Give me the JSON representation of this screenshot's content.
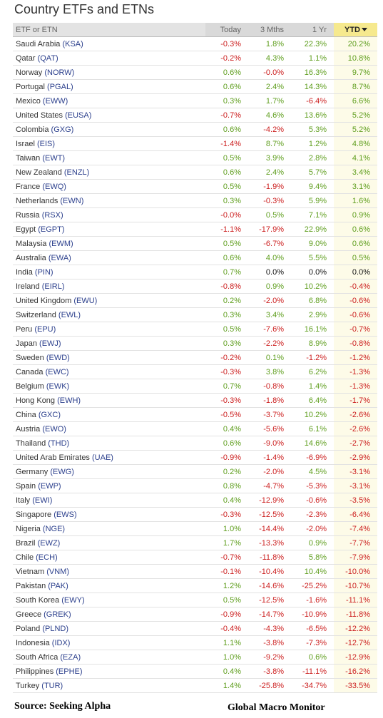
{
  "title": "Country ETFs and ETNs",
  "columns": [
    "ETF or ETN",
    "Today",
    "3 Mths",
    "1 Yr",
    "YTD"
  ],
  "sorted_column": "YTD",
  "colors": {
    "positive": "#5f9e1e",
    "negative": "#cc1f1f",
    "ticker": "#2b3f8c",
    "header_sorted": "#f6e98e"
  },
  "rows": [
    {
      "country": "Saudi Arabia",
      "ticker": "(KSA)",
      "today": "-0.3%",
      "m3": "1.8%",
      "yr1": "22.3%",
      "ytd": "20.2%"
    },
    {
      "country": "Qatar",
      "ticker": "(QAT)",
      "today": "-0.2%",
      "m3": "4.3%",
      "yr1": "1.1%",
      "ytd": "10.8%"
    },
    {
      "country": "Norway",
      "ticker": "(NORW)",
      "today": "0.6%",
      "m3": "-0.0%",
      "yr1": "16.3%",
      "ytd": "9.7%"
    },
    {
      "country": "Portugal",
      "ticker": "(PGAL)",
      "today": "0.6%",
      "m3": "2.4%",
      "yr1": "14.3%",
      "ytd": "8.7%"
    },
    {
      "country": "Mexico",
      "ticker": "(EWW)",
      "today": "0.3%",
      "m3": "1.7%",
      "yr1": "-6.4%",
      "ytd": "6.6%"
    },
    {
      "country": "United States",
      "ticker": "(EUSA)",
      "today": "-0.7%",
      "m3": "4.6%",
      "yr1": "13.6%",
      "ytd": "5.2%"
    },
    {
      "country": "Colombia",
      "ticker": "(GXG)",
      "today": "0.6%",
      "m3": "-4.2%",
      "yr1": "5.3%",
      "ytd": "5.2%"
    },
    {
      "country": "Israel",
      "ticker": "(EIS)",
      "today": "-1.4%",
      "m3": "8.7%",
      "yr1": "1.2%",
      "ytd": "4.8%"
    },
    {
      "country": "Taiwan",
      "ticker": "(EWT)",
      "today": "0.5%",
      "m3": "3.9%",
      "yr1": "2.8%",
      "ytd": "4.1%"
    },
    {
      "country": "New Zealand",
      "ticker": "(ENZL)",
      "today": "0.6%",
      "m3": "2.4%",
      "yr1": "5.7%",
      "ytd": "3.4%"
    },
    {
      "country": "France",
      "ticker": "(EWQ)",
      "today": "0.5%",
      "m3": "-1.9%",
      "yr1": "9.4%",
      "ytd": "3.1%"
    },
    {
      "country": "Netherlands",
      "ticker": "(EWN)",
      "today": "0.3%",
      "m3": "-0.3%",
      "yr1": "5.9%",
      "ytd": "1.6%"
    },
    {
      "country": "Russia",
      "ticker": "(RSX)",
      "today": "-0.0%",
      "m3": "0.5%",
      "yr1": "7.1%",
      "ytd": "0.9%"
    },
    {
      "country": "Egypt",
      "ticker": "(EGPT)",
      "today": "-1.1%",
      "m3": "-17.9%",
      "yr1": "22.9%",
      "ytd": "0.6%"
    },
    {
      "country": "Malaysia",
      "ticker": "(EWM)",
      "today": "0.5%",
      "m3": "-6.7%",
      "yr1": "9.0%",
      "ytd": "0.6%"
    },
    {
      "country": "Australia",
      "ticker": "(EWA)",
      "today": "0.6%",
      "m3": "4.0%",
      "yr1": "5.5%",
      "ytd": "0.5%"
    },
    {
      "country": "India",
      "ticker": "(PIN)",
      "today": "0.7%",
      "m3": "0.0%",
      "yr1": "0.0%",
      "ytd": "0.0%"
    },
    {
      "country": "Ireland",
      "ticker": "(EIRL)",
      "today": "-0.8%",
      "m3": "0.9%",
      "yr1": "10.2%",
      "ytd": "-0.4%"
    },
    {
      "country": "United Kingdom",
      "ticker": "(EWU)",
      "today": "0.2%",
      "m3": "-2.0%",
      "yr1": "6.8%",
      "ytd": "-0.6%"
    },
    {
      "country": "Switzerland",
      "ticker": "(EWL)",
      "today": "0.3%",
      "m3": "3.4%",
      "yr1": "2.9%",
      "ytd": "-0.6%"
    },
    {
      "country": "Peru",
      "ticker": "(EPU)",
      "today": "0.5%",
      "m3": "-7.6%",
      "yr1": "16.1%",
      "ytd": "-0.7%"
    },
    {
      "country": "Japan",
      "ticker": "(EWJ)",
      "today": "0.3%",
      "m3": "-2.2%",
      "yr1": "8.9%",
      "ytd": "-0.8%"
    },
    {
      "country": "Sweden",
      "ticker": "(EWD)",
      "today": "-0.2%",
      "m3": "0.1%",
      "yr1": "-1.2%",
      "ytd": "-1.2%"
    },
    {
      "country": "Canada",
      "ticker": "(EWC)",
      "today": "-0.3%",
      "m3": "3.8%",
      "yr1": "6.2%",
      "ytd": "-1.3%"
    },
    {
      "country": "Belgium",
      "ticker": "(EWK)",
      "today": "0.7%",
      "m3": "-0.8%",
      "yr1": "1.4%",
      "ytd": "-1.3%"
    },
    {
      "country": "Hong Kong",
      "ticker": "(EWH)",
      "today": "-0.3%",
      "m3": "-1.8%",
      "yr1": "6.4%",
      "ytd": "-1.7%"
    },
    {
      "country": "China",
      "ticker": "(GXC)",
      "today": "-0.5%",
      "m3": "-3.7%",
      "yr1": "10.2%",
      "ytd": "-2.6%"
    },
    {
      "country": "Austria",
      "ticker": "(EWO)",
      "today": "0.4%",
      "m3": "-5.6%",
      "yr1": "6.1%",
      "ytd": "-2.6%"
    },
    {
      "country": "Thailand",
      "ticker": "(THD)",
      "today": "0.6%",
      "m3": "-9.0%",
      "yr1": "14.6%",
      "ytd": "-2.7%"
    },
    {
      "country": "United Arab Emirates",
      "ticker": "(UAE)",
      "today": "-0.9%",
      "m3": "-1.4%",
      "yr1": "-6.9%",
      "ytd": "-2.9%"
    },
    {
      "country": "Germany",
      "ticker": "(EWG)",
      "today": "0.2%",
      "m3": "-2.0%",
      "yr1": "4.5%",
      "ytd": "-3.1%"
    },
    {
      "country": "Spain",
      "ticker": "(EWP)",
      "today": "0.8%",
      "m3": "-4.7%",
      "yr1": "-5.3%",
      "ytd": "-3.1%"
    },
    {
      "country": "Italy",
      "ticker": "(EWI)",
      "today": "0.4%",
      "m3": "-12.9%",
      "yr1": "-0.6%",
      "ytd": "-3.5%"
    },
    {
      "country": "Singapore",
      "ticker": "(EWS)",
      "today": "-0.3%",
      "m3": "-12.5%",
      "yr1": "-2.3%",
      "ytd": "-6.4%"
    },
    {
      "country": "Nigeria",
      "ticker": "(NGE)",
      "today": "1.0%",
      "m3": "-14.4%",
      "yr1": "-2.0%",
      "ytd": "-7.4%"
    },
    {
      "country": "Brazil",
      "ticker": "(EWZ)",
      "today": "1.7%",
      "m3": "-13.3%",
      "yr1": "0.9%",
      "ytd": "-7.7%"
    },
    {
      "country": "Chile",
      "ticker": "(ECH)",
      "today": "-0.7%",
      "m3": "-11.8%",
      "yr1": "5.8%",
      "ytd": "-7.9%"
    },
    {
      "country": "Vietnam",
      "ticker": "(VNM)",
      "today": "-0.1%",
      "m3": "-10.4%",
      "yr1": "10.4%",
      "ytd": "-10.0%"
    },
    {
      "country": "Pakistan",
      "ticker": "(PAK)",
      "today": "1.2%",
      "m3": "-14.6%",
      "yr1": "-25.2%",
      "ytd": "-10.7%"
    },
    {
      "country": "South Korea",
      "ticker": "(EWY)",
      "today": "0.5%",
      "m3": "-12.5%",
      "yr1": "-1.6%",
      "ytd": "-11.1%"
    },
    {
      "country": "Greece",
      "ticker": "(GREK)",
      "today": "-0.9%",
      "m3": "-14.7%",
      "yr1": "-10.9%",
      "ytd": "-11.8%"
    },
    {
      "country": "Poland",
      "ticker": "(PLND)",
      "today": "-0.4%",
      "m3": "-4.3%",
      "yr1": "-6.5%",
      "ytd": "-12.2%"
    },
    {
      "country": "Indonesia",
      "ticker": "(IDX)",
      "today": "1.1%",
      "m3": "-3.8%",
      "yr1": "-7.3%",
      "ytd": "-12.7%"
    },
    {
      "country": "South Africa",
      "ticker": "(EZA)",
      "today": "1.0%",
      "m3": "-9.2%",
      "yr1": "0.6%",
      "ytd": "-12.9%"
    },
    {
      "country": "Philippines",
      "ticker": "(EPHE)",
      "today": "0.4%",
      "m3": "-3.8%",
      "yr1": "-11.1%",
      "ytd": "-16.2%"
    },
    {
      "country": "Turkey",
      "ticker": "(TUR)",
      "today": "1.4%",
      "m3": "-25.8%",
      "yr1": "-34.7%",
      "ytd": "-33.5%"
    }
  ],
  "footer": {
    "source": "Source:  Seeking Alpha",
    "credit": "Global Macro Monitor"
  }
}
